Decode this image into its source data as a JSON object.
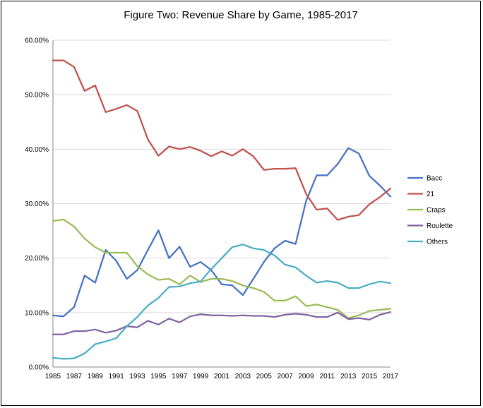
{
  "chart_data": {
    "type": "line",
    "title": "Figure Two: Revenue Share by Game, 1985-2017",
    "xlabel": "",
    "ylabel": "",
    "ylim": [
      0,
      0.6
    ],
    "y_ticks": [
      "0.00%",
      "10.00%",
      "20.00%",
      "30.00%",
      "40.00%",
      "50.00%",
      "60.00%"
    ],
    "x_ticks": [
      "1985",
      "1987",
      "1989",
      "1991",
      "1993",
      "1995",
      "1997",
      "1999",
      "2001",
      "2003",
      "2005",
      "2007",
      "2009",
      "2011",
      "2013",
      "2015",
      "2017"
    ],
    "x": [
      1985,
      1986,
      1987,
      1988,
      1989,
      1990,
      1991,
      1992,
      1993,
      1994,
      1995,
      1996,
      1997,
      1998,
      1999,
      2000,
      2001,
      2002,
      2003,
      2004,
      2005,
      2006,
      2007,
      2008,
      2009,
      2010,
      2011,
      2012,
      2013,
      2014,
      2015,
      2016,
      2017
    ],
    "grid": true,
    "legend_position": "right",
    "series": [
      {
        "name": "Bacc",
        "color": "#4472C4",
        "values": [
          0.095,
          0.093,
          0.11,
          0.168,
          0.155,
          0.215,
          0.195,
          0.162,
          0.178,
          0.215,
          0.251,
          0.2,
          0.221,
          0.184,
          0.193,
          0.178,
          0.152,
          0.15,
          0.132,
          0.162,
          0.193,
          0.218,
          0.232,
          0.226,
          0.305,
          0.352,
          0.352,
          0.373,
          0.402,
          0.392,
          0.351,
          0.333,
          0.313
        ]
      },
      {
        "name": "21",
        "color": "#C0504D",
        "values": [
          0.563,
          0.563,
          0.551,
          0.507,
          0.517,
          0.468,
          0.474,
          0.481,
          0.47,
          0.418,
          0.388,
          0.405,
          0.4,
          0.404,
          0.397,
          0.387,
          0.396,
          0.388,
          0.4,
          0.387,
          0.362,
          0.364,
          0.364,
          0.365,
          0.318,
          0.289,
          0.291,
          0.27,
          0.276,
          0.279,
          0.299,
          0.312,
          0.328
        ]
      },
      {
        "name": "Craps",
        "color": "#9BBB59",
        "values": [
          0.268,
          0.271,
          0.258,
          0.236,
          0.22,
          0.21,
          0.21,
          0.21,
          0.185,
          0.17,
          0.16,
          0.162,
          0.152,
          0.168,
          0.156,
          0.162,
          0.162,
          0.158,
          0.15,
          0.145,
          0.138,
          0.122,
          0.122,
          0.13,
          0.112,
          0.115,
          0.11,
          0.105,
          0.09,
          0.095,
          0.103,
          0.105,
          0.107
        ]
      },
      {
        "name": "Roulette",
        "color": "#8064A2",
        "values": [
          0.06,
          0.06,
          0.066,
          0.066,
          0.069,
          0.063,
          0.067,
          0.075,
          0.073,
          0.085,
          0.078,
          0.089,
          0.082,
          0.093,
          0.097,
          0.095,
          0.095,
          0.094,
          0.095,
          0.094,
          0.094,
          0.092,
          0.096,
          0.098,
          0.096,
          0.092,
          0.092,
          0.1,
          0.088,
          0.09,
          0.087,
          0.096,
          0.101
        ]
      },
      {
        "name": "Others",
        "color": "#4BACC6",
        "values": [
          0.017,
          0.015,
          0.016,
          0.025,
          0.042,
          0.047,
          0.053,
          0.075,
          0.092,
          0.113,
          0.127,
          0.147,
          0.148,
          0.154,
          0.157,
          0.18,
          0.2,
          0.22,
          0.225,
          0.218,
          0.215,
          0.205,
          0.188,
          0.183,
          0.168,
          0.155,
          0.158,
          0.155,
          0.145,
          0.145,
          0.152,
          0.157,
          0.154
        ]
      }
    ]
  }
}
